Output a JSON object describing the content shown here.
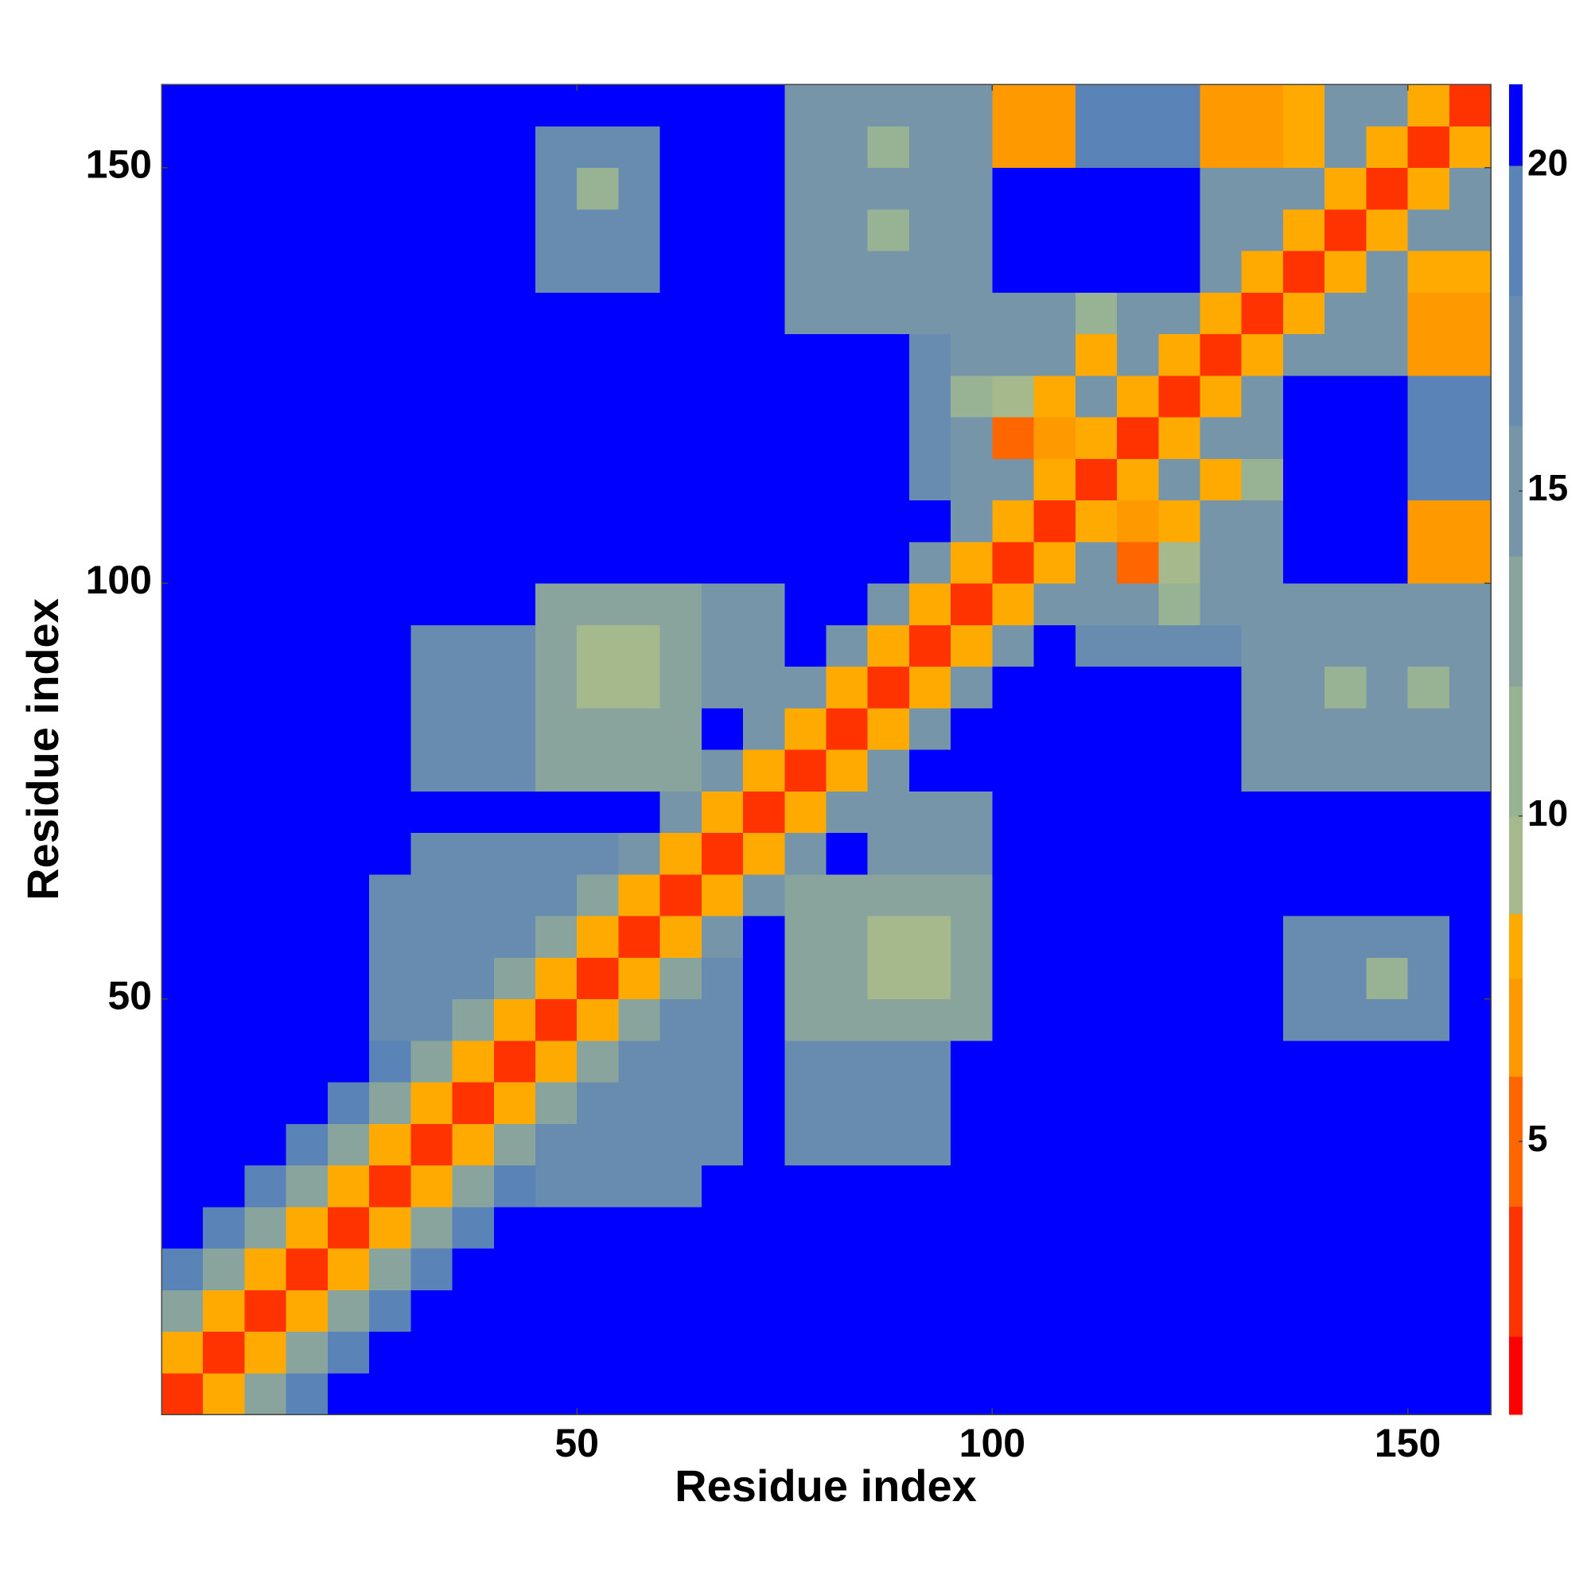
{
  "chart_data": {
    "type": "heatmap",
    "x_label": "Residue index",
    "y_label": "Residue index",
    "xlim": [
      0,
      160
    ],
    "ylim": [
      0,
      160
    ],
    "xticks": [
      50,
      100,
      150
    ],
    "yticks": [
      50,
      100,
      150
    ],
    "zlim": [
      0.8,
      21.25
    ],
    "zticks": [
      5,
      10,
      15,
      20
    ],
    "colorscale": [
      [
        2,
        "#ff0000"
      ],
      [
        4,
        "#ff3300"
      ],
      [
        6,
        "#ff6600"
      ],
      [
        7.5,
        "#ff9900"
      ],
      [
        8.5,
        "#ffaa00"
      ],
      [
        10,
        "#a6b98c"
      ],
      [
        12,
        "#98b294"
      ],
      [
        14,
        "#88a49c"
      ],
      [
        16,
        "#7795a8"
      ],
      [
        18,
        "#688bb0"
      ],
      [
        20,
        "#5a83b8"
      ],
      [
        21.25,
        "#0000ff"
      ]
    ],
    "z": [
      [
        3,
        8,
        14,
        19,
        21,
        21,
        21,
        21,
        21,
        21,
        21,
        21,
        21,
        21,
        21,
        21,
        21,
        21,
        21,
        21,
        21,
        21,
        21,
        21,
        21,
        21,
        21,
        21,
        21,
        21,
        21,
        21
      ],
      [
        8,
        3,
        8,
        14,
        19,
        21,
        21,
        21,
        21,
        21,
        21,
        21,
        21,
        21,
        21,
        21,
        21,
        21,
        21,
        21,
        21,
        21,
        21,
        21,
        21,
        21,
        21,
        21,
        21,
        21,
        21,
        21
      ],
      [
        14,
        8,
        3,
        8,
        14,
        19,
        21,
        21,
        21,
        21,
        21,
        21,
        21,
        21,
        21,
        21,
        21,
        21,
        21,
        21,
        21,
        21,
        21,
        21,
        21,
        21,
        21,
        21,
        21,
        21,
        21,
        21
      ],
      [
        19,
        14,
        8,
        3,
        8,
        14,
        19,
        21,
        21,
        21,
        21,
        21,
        21,
        21,
        21,
        21,
        21,
        21,
        21,
        21,
        21,
        21,
        21,
        21,
        21,
        21,
        21,
        21,
        21,
        21,
        21,
        21
      ],
      [
        21,
        19,
        14,
        8,
        3,
        8,
        14,
        19,
        21,
        21,
        21,
        21,
        21,
        21,
        21,
        21,
        21,
        21,
        21,
        21,
        21,
        21,
        21,
        21,
        21,
        21,
        21,
        21,
        21,
        21,
        21,
        21
      ],
      [
        21,
        21,
        19,
        14,
        8,
        3,
        8,
        14,
        19,
        17,
        17,
        17,
        17,
        21,
        21,
        21,
        21,
        21,
        21,
        21,
        21,
        21,
        21,
        21,
        21,
        21,
        21,
        21,
        21,
        21,
        21,
        21
      ],
      [
        21,
        21,
        21,
        19,
        14,
        8,
        3,
        8,
        14,
        17,
        17,
        17,
        17,
        17,
        21,
        17,
        17,
        17,
        17,
        21,
        21,
        21,
        21,
        21,
        21,
        21,
        21,
        21,
        21,
        21,
        21,
        21
      ],
      [
        21,
        21,
        21,
        21,
        19,
        14,
        8,
        3,
        8,
        14,
        17,
        17,
        17,
        17,
        21,
        17,
        17,
        17,
        17,
        21,
        21,
        21,
        21,
        21,
        21,
        21,
        21,
        21,
        21,
        21,
        21,
        21
      ],
      [
        21,
        21,
        21,
        21,
        21,
        19,
        14,
        8,
        3,
        8,
        14,
        17,
        17,
        17,
        21,
        17,
        17,
        17,
        17,
        21,
        21,
        21,
        21,
        21,
        21,
        21,
        21,
        21,
        21,
        21,
        21,
        21
      ],
      [
        21,
        21,
        21,
        21,
        21,
        17,
        17,
        14,
        8,
        3,
        8,
        14,
        17,
        17,
        21,
        14,
        14,
        14,
        14,
        14,
        21,
        21,
        21,
        21,
        21,
        21,
        21,
        17,
        17,
        17,
        17,
        21
      ],
      [
        21,
        21,
        21,
        21,
        21,
        17,
        17,
        17,
        14,
        8,
        3,
        8,
        14,
        17,
        21,
        14,
        14,
        10,
        10,
        14,
        21,
        21,
        21,
        21,
        21,
        21,
        21,
        17,
        17,
        12,
        17,
        21
      ],
      [
        21,
        21,
        21,
        21,
        21,
        17,
        17,
        17,
        17,
        14,
        8,
        3,
        8,
        16,
        21,
        14,
        14,
        10,
        10,
        14,
        21,
        21,
        21,
        21,
        21,
        21,
        21,
        17,
        17,
        17,
        17,
        21
      ],
      [
        21,
        21,
        21,
        21,
        21,
        17,
        17,
        17,
        17,
        17,
        14,
        8,
        3,
        8,
        16,
        14,
        14,
        14,
        14,
        14,
        21,
        21,
        21,
        21,
        21,
        21,
        21,
        21,
        21,
        21,
        21,
        21
      ],
      [
        21,
        21,
        21,
        21,
        21,
        21,
        17,
        17,
        17,
        17,
        17,
        16,
        8,
        3,
        8,
        16,
        21,
        16,
        16,
        16,
        21,
        21,
        21,
        21,
        21,
        21,
        21,
        21,
        21,
        21,
        21,
        21
      ],
      [
        21,
        21,
        21,
        21,
        21,
        21,
        21,
        21,
        21,
        21,
        21,
        21,
        16,
        8,
        3,
        8,
        16,
        16,
        16,
        16,
        21,
        21,
        21,
        21,
        21,
        21,
        21,
        21,
        21,
        21,
        21,
        21
      ],
      [
        21,
        21,
        21,
        21,
        21,
        21,
        17,
        17,
        17,
        14,
        14,
        14,
        14,
        16,
        8,
        3,
        8,
        16,
        21,
        21,
        21,
        21,
        21,
        21,
        21,
        21,
        16,
        16,
        16,
        16,
        16,
        16
      ],
      [
        21,
        21,
        21,
        21,
        21,
        21,
        17,
        17,
        17,
        14,
        14,
        14,
        14,
        21,
        16,
        8,
        3,
        8,
        16,
        21,
        21,
        21,
        21,
        21,
        21,
        21,
        16,
        16,
        16,
        16,
        16,
        16
      ],
      [
        21,
        21,
        21,
        21,
        21,
        21,
        17,
        17,
        17,
        14,
        10,
        10,
        14,
        16,
        16,
        16,
        8,
        3,
        8,
        16,
        21,
        21,
        21,
        21,
        21,
        21,
        16,
        16,
        12,
        16,
        11,
        16
      ],
      [
        21,
        21,
        21,
        21,
        21,
        21,
        17,
        17,
        17,
        14,
        10,
        10,
        14,
        16,
        16,
        21,
        16,
        8,
        3,
        8,
        16,
        21,
        17,
        17,
        17,
        17,
        16,
        16,
        16,
        16,
        16,
        16
      ],
      [
        21,
        21,
        21,
        21,
        21,
        21,
        21,
        21,
        21,
        14,
        14,
        14,
        14,
        16,
        16,
        21,
        21,
        16,
        8,
        3,
        8,
        16,
        16,
        16,
        12,
        16,
        16,
        16,
        16,
        16,
        16,
        16
      ],
      [
        21,
        21,
        21,
        21,
        21,
        21,
        21,
        21,
        21,
        21,
        21,
        21,
        21,
        21,
        21,
        21,
        21,
        21,
        16,
        8,
        3,
        8,
        16,
        6,
        10,
        16,
        16,
        21,
        21,
        21,
        7,
        7
      ],
      [
        21,
        21,
        21,
        21,
        21,
        21,
        21,
        21,
        21,
        21,
        21,
        21,
        21,
        21,
        21,
        21,
        21,
        21,
        21,
        16,
        8,
        3,
        8,
        7,
        8,
        16,
        16,
        21,
        21,
        21,
        7,
        7
      ],
      [
        21,
        21,
        21,
        21,
        21,
        21,
        21,
        21,
        21,
        21,
        21,
        21,
        21,
        21,
        21,
        21,
        21,
        21,
        17,
        16,
        16,
        8,
        3,
        8,
        16,
        8,
        12,
        21,
        21,
        21,
        19,
        19
      ],
      [
        21,
        21,
        21,
        21,
        21,
        21,
        21,
        21,
        21,
        21,
        21,
        21,
        21,
        21,
        21,
        21,
        21,
        21,
        17,
        16,
        6,
        7,
        8,
        3,
        8,
        16,
        16,
        21,
        21,
        21,
        19,
        19
      ],
      [
        21,
        21,
        21,
        21,
        21,
        21,
        21,
        21,
        21,
        21,
        21,
        21,
        21,
        21,
        21,
        21,
        21,
        21,
        17,
        12,
        10,
        8,
        16,
        8,
        3,
        8,
        16,
        21,
        21,
        21,
        19,
        19
      ],
      [
        21,
        21,
        21,
        21,
        21,
        21,
        21,
        21,
        21,
        21,
        21,
        21,
        21,
        21,
        21,
        21,
        21,
        21,
        17,
        16,
        16,
        16,
        8,
        16,
        8,
        3,
        8,
        15,
        15,
        15,
        7,
        7
      ],
      [
        21,
        21,
        21,
        21,
        21,
        21,
        21,
        21,
        21,
        21,
        21,
        21,
        21,
        21,
        21,
        16,
        16,
        16,
        16,
        16,
        16,
        16,
        12,
        16,
        16,
        8,
        3,
        8,
        15,
        15,
        7,
        7
      ],
      [
        21,
        21,
        21,
        21,
        21,
        21,
        21,
        21,
        21,
        17,
        17,
        17,
        21,
        21,
        21,
        16,
        16,
        16,
        16,
        16,
        21,
        21,
        21,
        21,
        21,
        15,
        8,
        3,
        8,
        15,
        8,
        8
      ],
      [
        21,
        21,
        21,
        21,
        21,
        21,
        21,
        21,
        21,
        17,
        17,
        17,
        21,
        21,
        21,
        16,
        16,
        12,
        16,
        16,
        21,
        21,
        21,
        21,
        21,
        15,
        15,
        8,
        3,
        8,
        15,
        15
      ],
      [
        21,
        21,
        21,
        21,
        21,
        21,
        21,
        21,
        21,
        17,
        12,
        17,
        21,
        21,
        21,
        16,
        16,
        16,
        16,
        16,
        21,
        21,
        21,
        21,
        21,
        15,
        15,
        15,
        8,
        3,
        8,
        15
      ],
      [
        21,
        21,
        21,
        21,
        21,
        21,
        21,
        21,
        21,
        17,
        17,
        17,
        21,
        21,
        21,
        16,
        16,
        11,
        16,
        16,
        7,
        7,
        19,
        19,
        19,
        7,
        7,
        8,
        15,
        8,
        3,
        8
      ],
      [
        21,
        21,
        21,
        21,
        21,
        21,
        21,
        21,
        21,
        21,
        21,
        21,
        21,
        21,
        21,
        16,
        16,
        16,
        16,
        16,
        7,
        7,
        19,
        19,
        19,
        7,
        7,
        8,
        15,
        15,
        8,
        3
      ]
    ]
  }
}
